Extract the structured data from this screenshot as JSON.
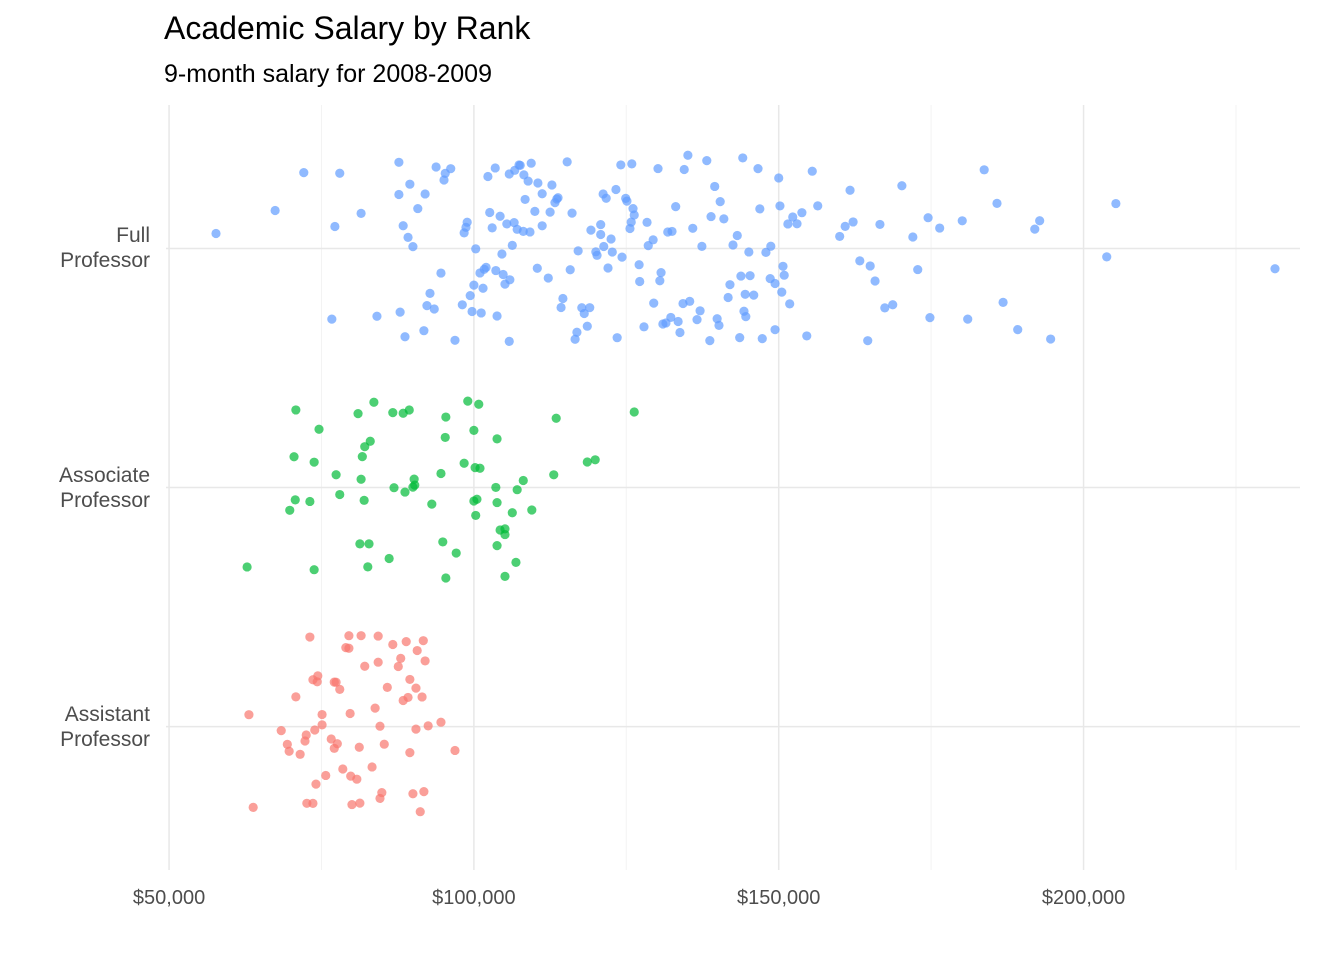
{
  "chart_data": {
    "type": "strip",
    "title": "Academic Salary by Rank",
    "subtitle": "9-month salary for 2008-2009",
    "xlim": [
      49500,
      235500
    ],
    "xticks": [
      {
        "value": 50000,
        "label": "$50,000"
      },
      {
        "value": 100000,
        "label": "$100,000"
      },
      {
        "value": 150000,
        "label": "$150,000"
      },
      {
        "value": 200000,
        "label": "$200,000"
      }
    ],
    "grid": true,
    "opacity": 0.7,
    "groups": [
      {
        "category": "Assistant Professor",
        "color": "#F8766D",
        "values": [
          74300,
          75100,
          72500,
          78500,
          82100,
          89500,
          92500,
          94600,
          68400,
          73100,
          77600,
          81200,
          83800,
          91800,
          70800,
          72300,
          75700,
          79500,
          85800,
          88000,
          92000,
          91200,
          96900,
          63800,
          74400,
          79800,
          84300,
          73600,
          87600,
          89200,
          63100,
          69700,
          69400,
          79700,
          84600,
          88400,
          91700,
          73600,
          77400,
          80800,
          84900,
          89500,
          79500,
          84600,
          74100,
          77100,
          72600,
          76600,
          84300,
          90700,
          73900,
          71500,
          75100,
          79000,
          81300,
          90500,
          91500,
          77100,
          85300,
          90500,
          83300,
          86700,
          88900,
          90000,
          78000,
          80000,
          81500
        ]
      },
      {
        "category": "Associate Professor",
        "color": "#00BA38",
        "values": [
          62800,
          73800,
          70500,
          73800,
          78000,
          82000,
          70700,
          73100,
          77400,
          69800,
          70800,
          74600,
          81300,
          83000,
          81700,
          83600,
          81500,
          82600,
          86900,
          88700,
          90000,
          88400,
          89400,
          93100,
          95400,
          94600,
          97100,
          90200,
          95300,
          95400,
          98400,
          99000,
          100200,
          100000,
          104300,
          105100,
          103800,
          108100,
          100500,
          100000,
          103800,
          106900,
          103600,
          107100,
          100800,
          103800,
          105100,
          100300,
          105100,
          106300,
          101000,
          113100,
          113500,
          109500,
          119900,
          126300,
          118600,
          94900,
          86700,
          81000,
          86100,
          90300,
          82100,
          82800
        ]
      },
      {
        "category": "Full Professor",
        "color": "#619CFF",
        "values": [
          57700,
          67400,
          78000,
          77200,
          72100,
          81500,
          76700,
          89500,
          91800,
          90800,
          92800,
          94600,
          95100,
          93800,
          92000,
          90000,
          89200,
          87900,
          88700,
          84100,
          88400,
          87700,
          92300,
          93500,
          95300,
          96900,
          96200,
          98100,
          98700,
          99400,
          99700,
          100300,
          101200,
          101700,
          102600,
          103500,
          103800,
          104300,
          104800,
          105400,
          105900,
          106700,
          107600,
          108400,
          109200,
          110000,
          101000,
          102000,
          103000,
          105100,
          106300,
          107100,
          108100,
          108900,
          101500,
          102300,
          103600,
          104600,
          105800,
          106600,
          107400,
          108200,
          109400,
          110500,
          111200,
          112200,
          112800,
          113800,
          114300,
          115300,
          116100,
          117100,
          117700,
          118600,
          119200,
          120200,
          121200,
          122000,
          122700,
          123500,
          124300,
          124900,
          125600,
          126300,
          127100,
          127900,
          128600,
          129400,
          130200,
          131000,
          131800,
          132500,
          133100,
          133800,
          134500,
          135100,
          135900,
          136600,
          137400,
          138200,
          138900,
          139500,
          140200,
          141000,
          141700,
          142500,
          143200,
          143800,
          144500,
          145100,
          145900,
          146600,
          147300,
          147900,
          148700,
          149400,
          150000,
          150700,
          151500,
          152300,
          153000,
          153800,
          154600,
          155500,
          156400,
          111200,
          112500,
          113600,
          114600,
          115800,
          116900,
          118100,
          119000,
          120000,
          120800,
          121700,
          122500,
          123300,
          124100,
          125100,
          126100,
          127200,
          128400,
          129500,
          130700,
          131500,
          134300,
          135400,
          137100,
          138700,
          140400,
          142000,
          143600,
          145300,
          146900,
          148600,
          150200,
          151800,
          160000,
          160900,
          161700,
          162200,
          163300,
          164600,
          165000,
          165800,
          166600,
          167400,
          168700,
          170200,
          172000,
          172800,
          174500,
          174800,
          176400,
          180100,
          181000,
          183700,
          185800,
          186800,
          189200,
          192800,
          194600,
          192000,
          203800,
          205300,
          231400,
          125800,
          130500,
          133500,
          144300,
          150900,
          87700,
          98400,
          98900,
          100000,
          105800,
          110400,
          113300,
          116600,
          120800,
          121300,
          125900,
          132300,
          139900,
          144100,
          144600,
          149400,
          150500
        ]
      }
    ]
  }
}
